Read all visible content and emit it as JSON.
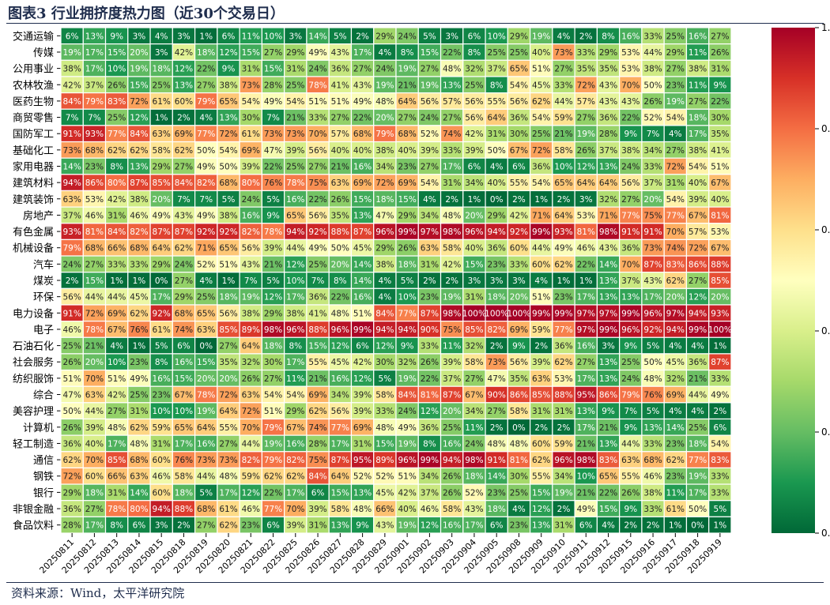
{
  "title": "图表3 行业拥挤度热力图（近30个交易日）",
  "source": "资料来源：Wind，太平洋研究院",
  "chart_data": {
    "type": "heatmap",
    "title": "图表3 行业拥挤度热力图（近30个交易日）",
    "colormap": "RdYlGn_r",
    "vlim": [
      0,
      1
    ],
    "colorbar_ticks": [
      "0.0",
      "0.2",
      "0.4",
      "0.6",
      "0.8",
      "1.0"
    ],
    "colors": [
      "#006837",
      "#1a9850",
      "#66bd63",
      "#a6d96a",
      "#d9ef8b",
      "#ffffbf",
      "#fee08b",
      "#fdae61",
      "#f46d43",
      "#d73027",
      "#a50026"
    ],
    "columns": [
      "20250811",
      "20250812",
      "20250813",
      "20250814",
      "20250815",
      "20250818",
      "20250819",
      "20250820",
      "20250821",
      "20250822",
      "20250825",
      "20250826",
      "20250827",
      "20250828",
      "20250829",
      "20250901",
      "20250902",
      "20250903",
      "20250904",
      "20250905",
      "20250908",
      "20250909",
      "20250910",
      "20250911",
      "20250912",
      "20250915",
      "20250916",
      "20250917",
      "20250918",
      "20250919"
    ],
    "rows": [
      {
        "name": "交通运输",
        "values": [
          6,
          13,
          9,
          3,
          4,
          3,
          1,
          6,
          11,
          10,
          3,
          14,
          5,
          2,
          29,
          24,
          5,
          3,
          6,
          10,
          29,
          19,
          4,
          2,
          8,
          16,
          33,
          25,
          16,
          27
        ]
      },
      {
        "name": "传媒",
        "values": [
          19,
          17,
          15,
          20,
          3,
          42,
          18,
          12,
          15,
          27,
          29,
          49,
          43,
          17,
          4,
          8,
          15,
          22,
          8,
          25,
          25,
          40,
          73,
          33,
          29,
          53,
          44,
          29,
          11,
          26
        ]
      },
      {
        "name": "公用事业",
        "values": [
          38,
          17,
          10,
          19,
          18,
          12,
          22,
          9,
          31,
          15,
          31,
          24,
          36,
          27,
          24,
          19,
          27,
          48,
          32,
          37,
          65,
          51,
          27,
          35,
          35,
          53,
          38,
          27,
          38,
          31
        ]
      },
      {
        "name": "农林牧渔",
        "values": [
          42,
          37,
          26,
          15,
          25,
          13,
          27,
          38,
          73,
          28,
          25,
          78,
          41,
          43,
          19,
          21,
          19,
          13,
          25,
          8,
          54,
          45,
          33,
          72,
          43,
          70,
          50,
          23,
          11,
          9
        ]
      },
      {
        "name": "医药生物",
        "values": [
          84,
          79,
          83,
          72,
          61,
          60,
          79,
          65,
          54,
          49,
          54,
          51,
          51,
          49,
          48,
          64,
          56,
          57,
          56,
          55,
          56,
          62,
          44,
          57,
          43,
          43,
          26,
          19,
          27,
          22
        ]
      },
      {
        "name": "商贸零售",
        "values": [
          7,
          7,
          25,
          12,
          1,
          2,
          4,
          13,
          30,
          7,
          21,
          33,
          27,
          22,
          20,
          27,
          24,
          27,
          56,
          64,
          36,
          54,
          59,
          27,
          36,
          22,
          52,
          54,
          18,
          30
        ]
      },
      {
        "name": "国防军工",
        "values": [
          91,
          93,
          77,
          84,
          63,
          69,
          77,
          72,
          61,
          73,
          73,
          70,
          57,
          68,
          79,
          68,
          52,
          74,
          42,
          31,
          30,
          25,
          21,
          19,
          28,
          9,
          7,
          4,
          17,
          35
        ]
      },
      {
        "name": "基础化工",
        "values": [
          73,
          68,
          62,
          62,
          58,
          62,
          50,
          54,
          69,
          47,
          39,
          56,
          40,
          40,
          38,
          40,
          39,
          33,
          39,
          50,
          67,
          72,
          58,
          26,
          37,
          38,
          34,
          27,
          38,
          41
        ]
      },
      {
        "name": "家用电器",
        "values": [
          14,
          23,
          8,
          13,
          29,
          27,
          49,
          50,
          39,
          22,
          25,
          27,
          21,
          16,
          34,
          23,
          27,
          17,
          6,
          4,
          6,
          36,
          10,
          12,
          13,
          24,
          33,
          72,
          54,
          51
        ]
      },
      {
        "name": "建筑材料",
        "values": [
          94,
          86,
          80,
          87,
          85,
          84,
          82,
          68,
          80,
          76,
          78,
          75,
          63,
          69,
          72,
          69,
          54,
          31,
          34,
          40,
          55,
          54,
          65,
          64,
          64,
          56,
          37,
          31,
          40,
          67
        ]
      },
      {
        "name": "建筑装饰",
        "values": [
          63,
          53,
          42,
          38,
          20,
          7,
          7,
          5,
          24,
          5,
          16,
          22,
          26,
          15,
          18,
          15,
          4,
          2,
          1,
          0,
          2,
          1,
          2,
          3,
          32,
          27,
          20,
          54,
          39,
          40
        ]
      },
      {
        "name": "房地产",
        "values": [
          37,
          46,
          31,
          46,
          49,
          43,
          49,
          38,
          16,
          9,
          65,
          56,
          35,
          13,
          47,
          29,
          34,
          48,
          20,
          29,
          42,
          71,
          64,
          53,
          71,
          77,
          75,
          77,
          67,
          81
        ]
      },
      {
        "name": "有色金属",
        "values": [
          93,
          81,
          84,
          82,
          87,
          87,
          92,
          92,
          82,
          78,
          94,
          92,
          88,
          87,
          96,
          99,
          97,
          98,
          96,
          94,
          92,
          99,
          93,
          81,
          98,
          91,
          91,
          70,
          57,
          53
        ]
      },
      {
        "name": "机械设备",
        "values": [
          79,
          68,
          66,
          68,
          64,
          62,
          71,
          65,
          56,
          39,
          44,
          49,
          50,
          45,
          29,
          26,
          63,
          58,
          40,
          36,
          60,
          44,
          49,
          46,
          43,
          36,
          73,
          74,
          72,
          67
        ]
      },
      {
        "name": "汽车",
        "values": [
          24,
          27,
          33,
          33,
          29,
          24,
          52,
          51,
          43,
          21,
          12,
          25,
          20,
          14,
          38,
          18,
          31,
          42,
          15,
          23,
          33,
          60,
          62,
          22,
          14,
          70,
          87,
          83,
          86,
          88
        ]
      },
      {
        "name": "煤炭",
        "values": [
          2,
          15,
          1,
          1,
          0,
          27,
          4,
          1,
          7,
          5,
          10,
          7,
          8,
          14,
          4,
          5,
          2,
          2,
          3,
          3,
          3,
          4,
          1,
          1,
          13,
          37,
          43,
          62,
          27,
          85
        ]
      },
      {
        "name": "环保",
        "values": [
          56,
          44,
          44,
          45,
          17,
          29,
          25,
          18,
          19,
          12,
          17,
          36,
          22,
          16,
          4,
          10,
          23,
          19,
          31,
          18,
          20,
          51,
          23,
          17,
          13,
          13,
          17,
          20,
          12,
          20
        ]
      },
      {
        "name": "电力设备",
        "values": [
          91,
          72,
          69,
          62,
          92,
          68,
          65,
          56,
          38,
          29,
          38,
          41,
          48,
          51,
          84,
          77,
          87,
          98,
          100,
          100,
          100,
          99,
          99,
          97,
          97,
          99,
          96,
          97,
          94,
          93
        ]
      },
      {
        "name": "电子",
        "values": [
          46,
          78,
          67,
          76,
          61,
          74,
          63,
          85,
          89,
          98,
          96,
          88,
          96,
          99,
          94,
          94,
          90,
          75,
          85,
          82,
          69,
          59,
          77,
          97,
          99,
          96,
          92,
          94,
          99,
          100
        ]
      },
      {
        "name": "石油石化",
        "values": [
          25,
          21,
          4,
          1,
          5,
          6,
          0,
          27,
          64,
          18,
          8,
          15,
          12,
          6,
          12,
          9,
          33,
          11,
          32,
          2,
          9,
          2,
          36,
          16,
          3,
          9,
          5,
          4,
          4,
          1
        ]
      },
      {
        "name": "社会服务",
        "values": [
          26,
          20,
          10,
          23,
          8,
          16,
          15,
          35,
          32,
          30,
          17,
          55,
          45,
          42,
          30,
          32,
          26,
          39,
          58,
          73,
          56,
          39,
          62,
          27,
          13,
          25,
          50,
          45,
          36,
          87
        ]
      },
      {
        "name": "纺织服饰",
        "values": [
          51,
          70,
          51,
          49,
          16,
          15,
          20,
          20,
          26,
          27,
          11,
          21,
          16,
          12,
          5,
          19,
          22,
          37,
          27,
          47,
          35,
          63,
          53,
          17,
          13,
          24,
          48,
          32,
          21,
          33
        ]
      },
      {
        "name": "综合",
        "values": [
          47,
          63,
          42,
          25,
          23,
          67,
          78,
          72,
          63,
          54,
          54,
          69,
          34,
          39,
          58,
          84,
          81,
          87,
          67,
          90,
          86,
          85,
          88,
          95,
          86,
          79,
          76,
          69,
          44,
          49
        ]
      },
      {
        "name": "美容护理",
        "values": [
          50,
          44,
          27,
          31,
          10,
          10,
          19,
          64,
          72,
          51,
          29,
          62,
          56,
          39,
          33,
          24,
          12,
          20,
          34,
          27,
          58,
          31,
          31,
          13,
          9,
          7,
          5,
          4,
          4,
          2
        ]
      },
      {
        "name": "计算机",
        "values": [
          26,
          39,
          48,
          62,
          59,
          65,
          64,
          55,
          70,
          79,
          67,
          74,
          77,
          69,
          48,
          49,
          36,
          25,
          11,
          2,
          0,
          2,
          2,
          17,
          21,
          9,
          13,
          14,
          25,
          6
        ]
      },
      {
        "name": "轻工制造",
        "values": [
          36,
          40,
          17,
          48,
          31,
          17,
          16,
          27,
          44,
          19,
          16,
          28,
          17,
          31,
          15,
          19,
          8,
          16,
          24,
          48,
          48,
          60,
          59,
          21,
          13,
          44,
          33,
          23,
          18,
          54
        ]
      },
      {
        "name": "通信",
        "values": [
          62,
          70,
          85,
          68,
          60,
          76,
          73,
          73,
          82,
          79,
          82,
          75,
          87,
          95,
          89,
          96,
          99,
          94,
          98,
          91,
          81,
          62,
          96,
          98,
          83,
          63,
          68,
          62,
          77,
          83
        ]
      },
      {
        "name": "钢铁",
        "values": [
          72,
          60,
          66,
          63,
          46,
          58,
          44,
          48,
          59,
          62,
          62,
          84,
          64,
          52,
          52,
          51,
          34,
          26,
          18,
          14,
          30,
          55,
          34,
          10,
          65,
          55,
          46,
          23,
          19,
          33
        ]
      },
      {
        "name": "银行",
        "values": [
          29,
          18,
          31,
          14,
          60,
          18,
          5,
          17,
          12,
          22,
          17,
          6,
          15,
          13,
          45,
          42,
          37,
          26,
          52,
          23,
          25,
          15,
          19,
          21,
          22,
          26,
          38,
          11,
          17,
          33
        ]
      },
      {
        "name": "非银金融",
        "values": [
          36,
          27,
          78,
          80,
          94,
          88,
          68,
          61,
          46,
          77,
          70,
          39,
          58,
          48,
          66,
          40,
          46,
          58,
          43,
          18,
          4,
          12,
          2,
          49,
          15,
          9,
          33,
          61,
          50,
          5
        ]
      },
      {
        "name": "食品饮料",
        "values": [
          28,
          17,
          8,
          6,
          3,
          2,
          27,
          62,
          23,
          6,
          39,
          31,
          13,
          9,
          43,
          19,
          12,
          16,
          17,
          6,
          23,
          13,
          31,
          6,
          4,
          2,
          2,
          1,
          0,
          1
        ]
      }
    ]
  }
}
